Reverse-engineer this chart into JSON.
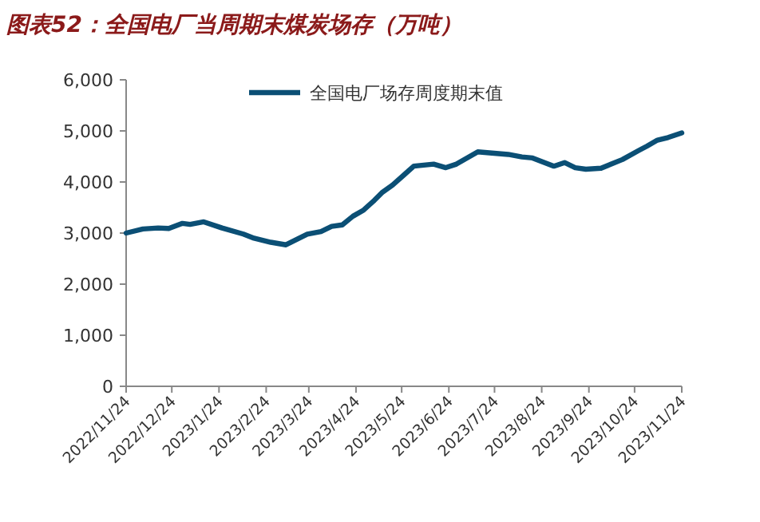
{
  "chart_data": {
    "type": "line",
    "title": "图表52：全国电厂当周期末煤炭场存（万吨）",
    "x": [
      "2022-11-24",
      "2022-12-05",
      "2022-12-15",
      "2022-12-22",
      "2022-12-31",
      "2023-01-05",
      "2023-01-14",
      "2023-01-26",
      "2023-02-09",
      "2023-02-16",
      "2023-02-27",
      "2023-03-09",
      "2023-03-23",
      "2023-04-01",
      "2023-04-08",
      "2023-04-15",
      "2023-04-22",
      "2023-04-29",
      "2023-05-06",
      "2023-05-11",
      "2023-05-18",
      "2023-06-01",
      "2023-06-14",
      "2023-06-22",
      "2023-06-29",
      "2023-07-13",
      "2023-08-02",
      "2023-08-11",
      "2023-08-18",
      "2023-09-01",
      "2023-09-08",
      "2023-09-15",
      "2023-09-22",
      "2023-10-02",
      "2023-10-16",
      "2023-10-27",
      "2023-11-01",
      "2023-11-08",
      "2023-11-15",
      "2023-11-24"
    ],
    "series": [
      {
        "name": "全国电厂场存周度期末值",
        "color": "#0b4f75",
        "values": [
          3000,
          3080,
          3100,
          3090,
          3190,
          3170,
          3220,
          3100,
          2980,
          2900,
          2820,
          2770,
          2980,
          3030,
          3130,
          3160,
          3330,
          3450,
          3640,
          3790,
          3940,
          4310,
          4350,
          4280,
          4350,
          4590,
          4540,
          4490,
          4470,
          4310,
          4380,
          4280,
          4250,
          4270,
          4440,
          4620,
          4700,
          4820,
          4870,
          4960
        ]
      }
    ],
    "xlim": [
      "2022-11-24",
      "2023-11-24"
    ],
    "xticks": [
      {
        "value": "2022-11-24",
        "label": "2022/11/24"
      },
      {
        "value": "2022-12-24",
        "label": "2022/12/24"
      },
      {
        "value": "2023-01-24",
        "label": "2023/1/24"
      },
      {
        "value": "2023-02-24",
        "label": "2023/2/24"
      },
      {
        "value": "2023-03-24",
        "label": "2023/3/24"
      },
      {
        "value": "2023-04-24",
        "label": "2023/4/24"
      },
      {
        "value": "2023-05-24",
        "label": "2023/5/24"
      },
      {
        "value": "2023-06-24",
        "label": "2023/6/24"
      },
      {
        "value": "2023-07-24",
        "label": "2023/7/24"
      },
      {
        "value": "2023-08-24",
        "label": "2023/8/24"
      },
      {
        "value": "2023-09-24",
        "label": "2023/9/24"
      },
      {
        "value": "2023-10-24",
        "label": "2023/10/24"
      },
      {
        "value": "2023-11-24",
        "label": "2023/11/24"
      }
    ],
    "ylim": [
      0,
      6000
    ],
    "yticks": [
      0,
      {
        "value": 1000,
        "label": "1,000"
      },
      {
        "value": 2000,
        "label": "2,000"
      },
      {
        "value": 3000,
        "label": "3,000"
      },
      {
        "value": 4000,
        "label": "4,000"
      },
      {
        "value": 5000,
        "label": "5,000"
      },
      {
        "value": 6000,
        "label": "6,000"
      }
    ],
    "legend": "top",
    "grid": false,
    "marker": "none",
    "line_style": "solid"
  }
}
